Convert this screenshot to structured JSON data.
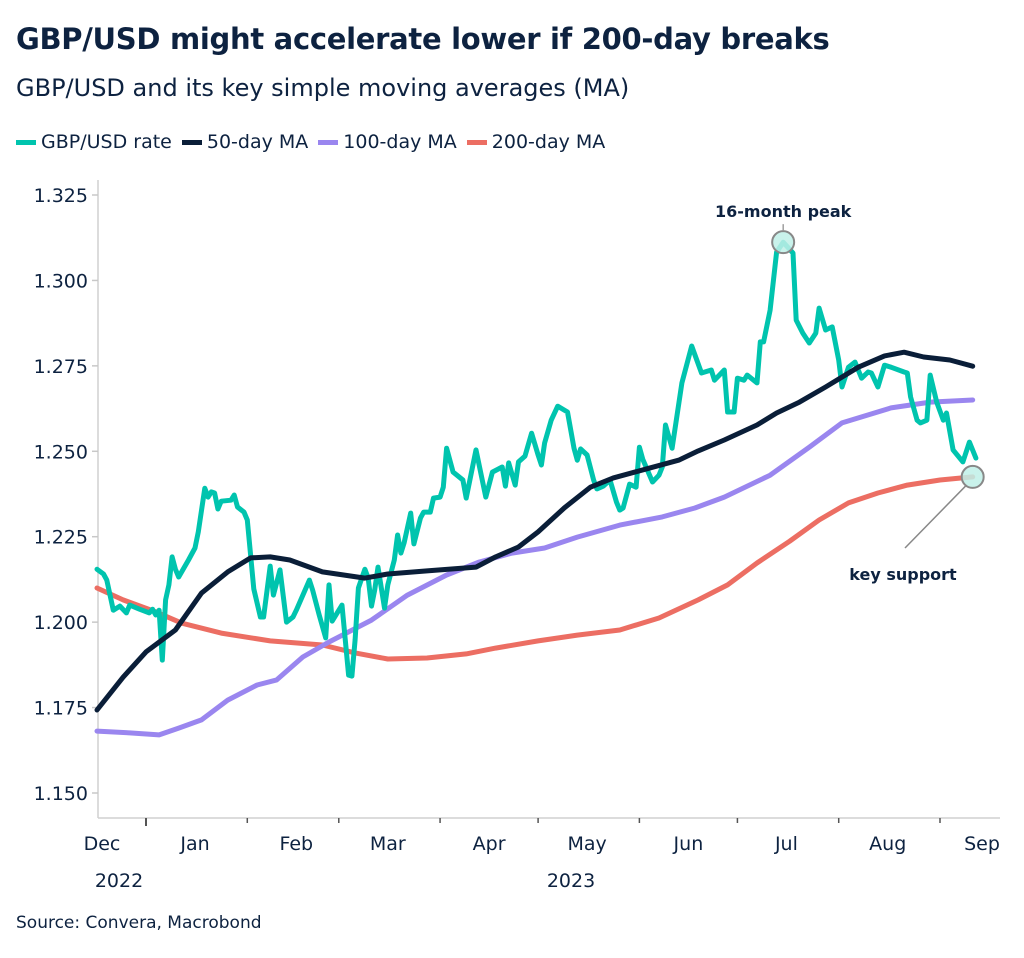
{
  "title": "GBP/USD might accelerate lower if 200-day breaks",
  "subtitle": "GBP/USD and its key simple moving averages (MA)",
  "source": "Source: Convera, Macrobond",
  "chart_data": {
    "type": "line",
    "title": "GBP/USD might accelerate lower if 200-day breaks",
    "subtitle": "GBP/USD and its key simple moving averages (MA)",
    "xlabel": "",
    "ylabel": "",
    "ylim": [
      1.15,
      1.325
    ],
    "xlim": [
      "2022-12-17",
      "2023-09-12"
    ],
    "grid": false,
    "legend_position": "top-left",
    "y_ticks": [
      "1.150",
      "1.175",
      "1.200",
      "1.225",
      "1.250",
      "1.275",
      "1.300",
      "1.325"
    ],
    "x_month_labels": [
      "Dec",
      "Jan",
      "Feb",
      "Mar",
      "Apr",
      "May",
      "Jun",
      "Jul",
      "Aug",
      "Sep"
    ],
    "x_year_labels": [
      "2022",
      "2023"
    ],
    "annotations": [
      {
        "text": "16-month peak",
        "series": "GBP/USD rate",
        "x": "2023-07-15",
        "y": 1.3112
      },
      {
        "text": "key support",
        "series": "200-day MA",
        "x": "2023-09-11",
        "y": 1.2425
      }
    ],
    "series": [
      {
        "name": "GBP/USD rate",
        "color": "#00c4ae",
        "points": [
          [
            "2022-12-17",
            1.2155
          ],
          [
            "2022-12-19",
            1.2141
          ],
          [
            "2022-12-20",
            1.2123
          ],
          [
            "2022-12-22",
            1.2035
          ],
          [
            "2022-12-24",
            1.2047
          ],
          [
            "2022-12-26",
            1.2027
          ],
          [
            "2022-12-27",
            1.205
          ],
          [
            "2022-12-30",
            1.2038
          ],
          [
            "2023-01-02",
            1.2027
          ],
          [
            "2023-01-03",
            1.2038
          ],
          [
            "2023-01-04",
            1.2021
          ],
          [
            "2023-01-05",
            1.2035
          ],
          [
            "2023-01-06",
            1.1889
          ],
          [
            "2023-01-07",
            1.2065
          ],
          [
            "2023-01-08",
            1.2109
          ],
          [
            "2023-01-09",
            1.2191
          ],
          [
            "2023-01-10",
            1.2155
          ],
          [
            "2023-01-11",
            1.2132
          ],
          [
            "2023-01-14",
            1.2182
          ],
          [
            "2023-01-16",
            1.2217
          ],
          [
            "2023-01-17",
            1.2264
          ],
          [
            "2023-01-19",
            1.2392
          ],
          [
            "2023-01-20",
            1.2366
          ],
          [
            "2023-01-21",
            1.2381
          ],
          [
            "2023-01-22",
            1.2378
          ],
          [
            "2023-01-23",
            1.2331
          ],
          [
            "2023-01-24",
            1.2354
          ],
          [
            "2023-01-27",
            1.2357
          ],
          [
            "2023-01-28",
            1.2372
          ],
          [
            "2023-01-29",
            1.2337
          ],
          [
            "2023-01-31",
            1.2322
          ],
          [
            "2023-02-01",
            1.2299
          ],
          [
            "2023-02-03",
            1.2097
          ],
          [
            "2023-02-05",
            1.2015
          ],
          [
            "2023-02-06",
            1.2015
          ],
          [
            "2023-02-08",
            1.2164
          ],
          [
            "2023-02-09",
            1.2079
          ],
          [
            "2023-02-11",
            1.2153
          ],
          [
            "2023-02-13",
            1.2
          ],
          [
            "2023-02-15",
            1.2015
          ],
          [
            "2023-02-16",
            1.2035
          ],
          [
            "2023-02-20",
            1.2123
          ],
          [
            "2023-02-21",
            1.2094
          ],
          [
            "2023-02-23",
            1.2021
          ],
          [
            "2023-02-25",
            1.1954
          ],
          [
            "2023-02-26",
            1.2109
          ],
          [
            "2023-02-27",
            1.2003
          ],
          [
            "2023-03-02",
            1.205
          ],
          [
            "2023-03-04",
            1.1845
          ],
          [
            "2023-03-05",
            1.1842
          ],
          [
            "2023-03-06",
            1.1948
          ],
          [
            "2023-03-07",
            1.21
          ],
          [
            "2023-03-09",
            1.2155
          ],
          [
            "2023-03-10",
            1.2129
          ],
          [
            "2023-03-11",
            1.2047
          ],
          [
            "2023-03-12",
            1.2094
          ],
          [
            "2023-03-13",
            1.2161
          ],
          [
            "2023-03-15",
            1.2041
          ],
          [
            "2023-03-16",
            1.2109
          ],
          [
            "2023-03-18",
            1.2182
          ],
          [
            "2023-03-19",
            1.2255
          ],
          [
            "2023-03-20",
            1.2202
          ],
          [
            "2023-03-21",
            1.2232
          ],
          [
            "2023-03-23",
            1.2319
          ],
          [
            "2023-03-24",
            1.2229
          ],
          [
            "2023-03-26",
            1.2305
          ],
          [
            "2023-03-27",
            1.2322
          ],
          [
            "2023-03-29",
            1.2322
          ],
          [
            "2023-03-30",
            1.2363
          ],
          [
            "2023-04-01",
            1.2366
          ],
          [
            "2023-04-02",
            1.2395
          ],
          [
            "2023-04-03",
            1.2509
          ],
          [
            "2023-04-05",
            1.2439
          ],
          [
            "2023-04-08",
            1.2416
          ],
          [
            "2023-04-09",
            1.2363
          ],
          [
            "2023-04-12",
            1.2504
          ],
          [
            "2023-04-15",
            1.2366
          ],
          [
            "2023-04-17",
            1.2439
          ],
          [
            "2023-04-20",
            1.2454
          ],
          [
            "2023-04-21",
            1.2398
          ],
          [
            "2023-04-22",
            1.2466
          ],
          [
            "2023-04-24",
            1.2401
          ],
          [
            "2023-04-25",
            1.2469
          ],
          [
            "2023-04-27",
            1.2486
          ],
          [
            "2023-04-29",
            1.2553
          ],
          [
            "2023-05-01",
            1.2489
          ],
          [
            "2023-05-02",
            1.246
          ],
          [
            "2023-05-03",
            1.2524
          ],
          [
            "2023-05-05",
            1.2591
          ],
          [
            "2023-05-07",
            1.2632
          ],
          [
            "2023-05-10",
            1.2615
          ],
          [
            "2023-05-12",
            1.2509
          ],
          [
            "2023-05-13",
            1.2474
          ],
          [
            "2023-05-14",
            1.2507
          ],
          [
            "2023-05-16",
            1.2489
          ],
          [
            "2023-05-18",
            1.2416
          ],
          [
            "2023-05-19",
            1.239
          ],
          [
            "2023-05-21",
            1.2398
          ],
          [
            "2023-05-23",
            1.2416
          ],
          [
            "2023-05-25",
            1.2351
          ],
          [
            "2023-05-26",
            1.2328
          ],
          [
            "2023-05-27",
            1.2334
          ],
          [
            "2023-05-29",
            1.2404
          ],
          [
            "2023-05-31",
            1.2395
          ],
          [
            "2023-06-01",
            1.2512
          ],
          [
            "2023-06-02",
            1.2477
          ],
          [
            "2023-06-05",
            1.241
          ],
          [
            "2023-06-07",
            1.243
          ],
          [
            "2023-06-08",
            1.2454
          ],
          [
            "2023-06-09",
            1.2577
          ],
          [
            "2023-06-11",
            1.2509
          ],
          [
            "2023-06-14",
            1.27
          ],
          [
            "2023-06-17",
            1.2808
          ],
          [
            "2023-06-20",
            1.2729
          ],
          [
            "2023-06-23",
            1.2738
          ],
          [
            "2023-06-24",
            1.2708
          ],
          [
            "2023-06-27",
            1.2738
          ],
          [
            "2023-06-28",
            1.2615
          ],
          [
            "2023-06-30",
            1.2615
          ],
          [
            "2023-07-01",
            1.2714
          ],
          [
            "2023-07-03",
            1.2708
          ],
          [
            "2023-07-04",
            1.2723
          ],
          [
            "2023-07-07",
            1.27
          ],
          [
            "2023-07-08",
            1.282
          ],
          [
            "2023-07-09",
            1.282
          ],
          [
            "2023-07-11",
            1.2913
          ],
          [
            "2023-07-13",
            1.3083
          ],
          [
            "2023-07-15",
            1.3112
          ],
          [
            "2023-07-18",
            1.308
          ],
          [
            "2023-07-19",
            1.2884
          ],
          [
            "2023-07-21",
            1.2846
          ],
          [
            "2023-07-23",
            1.2817
          ],
          [
            "2023-07-25",
            1.2846
          ],
          [
            "2023-07-26",
            1.2919
          ],
          [
            "2023-07-28",
            1.2855
          ],
          [
            "2023-07-30",
            1.2864
          ],
          [
            "2023-08-01",
            1.2767
          ],
          [
            "2023-08-02",
            1.2688
          ],
          [
            "2023-08-04",
            1.2746
          ],
          [
            "2023-08-06",
            1.2761
          ],
          [
            "2023-08-08",
            1.2714
          ],
          [
            "2023-08-10",
            1.2732
          ],
          [
            "2023-08-11",
            1.2729
          ],
          [
            "2023-08-13",
            1.2688
          ],
          [
            "2023-08-15",
            1.2752
          ],
          [
            "2023-08-17",
            1.2746
          ],
          [
            "2023-08-21",
            1.2732
          ],
          [
            "2023-08-22",
            1.2729
          ],
          [
            "2023-08-23",
            1.2659
          ],
          [
            "2023-08-25",
            1.2591
          ],
          [
            "2023-08-26",
            1.2583
          ],
          [
            "2023-08-28",
            1.2591
          ],
          [
            "2023-08-29",
            1.2723
          ],
          [
            "2023-08-31",
            1.2644
          ],
          [
            "2023-09-02",
            1.2591
          ],
          [
            "2023-09-03",
            1.2612
          ],
          [
            "2023-09-05",
            1.2504
          ],
          [
            "2023-09-08",
            1.2469
          ],
          [
            "2023-09-10",
            1.2527
          ],
          [
            "2023-09-12",
            1.248
          ]
        ]
      },
      {
        "name": "50-day MA",
        "color": "#0a1e38",
        "points": [
          [
            "2022-12-17",
            1.1743
          ],
          [
            "2022-12-25",
            1.1839
          ],
          [
            "2023-01-01",
            1.1913
          ],
          [
            "2023-01-10",
            1.1977
          ],
          [
            "2023-01-18",
            1.2085
          ],
          [
            "2023-01-26",
            1.2147
          ],
          [
            "2023-02-02",
            1.2188
          ],
          [
            "2023-02-08",
            1.2191
          ],
          [
            "2023-02-14",
            1.2182
          ],
          [
            "2023-02-24",
            1.2147
          ],
          [
            "2023-03-09",
            1.2129
          ],
          [
            "2023-03-16",
            1.2141
          ],
          [
            "2023-03-28",
            1.215
          ],
          [
            "2023-04-12",
            1.2161
          ],
          [
            "2023-04-18",
            1.2191
          ],
          [
            "2023-04-25",
            1.222
          ],
          [
            "2023-05-01",
            1.2264
          ],
          [
            "2023-05-09",
            1.2334
          ],
          [
            "2023-05-17",
            1.2395
          ],
          [
            "2023-05-24",
            1.2422
          ],
          [
            "2023-06-03",
            1.2448
          ],
          [
            "2023-06-13",
            1.2474
          ],
          [
            "2023-06-19",
            1.2501
          ],
          [
            "2023-06-27",
            1.2533
          ],
          [
            "2023-07-07",
            1.2577
          ],
          [
            "2023-07-13",
            1.2612
          ],
          [
            "2023-07-20",
            1.2644
          ],
          [
            "2023-07-28",
            1.2688
          ],
          [
            "2023-08-07",
            1.2746
          ],
          [
            "2023-08-15",
            1.2779
          ],
          [
            "2023-08-21",
            1.279
          ],
          [
            "2023-08-27",
            1.2776
          ],
          [
            "2023-09-04",
            1.2767
          ],
          [
            "2023-09-11",
            1.2749
          ]
        ]
      },
      {
        "name": "100-day MA",
        "color": "#9a86ef",
        "points": [
          [
            "2022-12-17",
            1.1681
          ],
          [
            "2022-12-27",
            1.1676
          ],
          [
            "2023-01-05",
            1.167
          ],
          [
            "2023-01-11",
            1.169
          ],
          [
            "2023-01-18",
            1.1714
          ],
          [
            "2023-01-26",
            1.1772
          ],
          [
            "2023-02-04",
            1.1816
          ],
          [
            "2023-02-10",
            1.1831
          ],
          [
            "2023-02-18",
            1.1898
          ],
          [
            "2023-02-26",
            1.1942
          ],
          [
            "2023-03-11",
            1.2006
          ],
          [
            "2023-03-22",
            1.2079
          ],
          [
            "2023-04-03",
            1.2138
          ],
          [
            "2023-04-13",
            1.2176
          ],
          [
            "2023-04-23",
            1.2202
          ],
          [
            "2023-05-03",
            1.2217
          ],
          [
            "2023-05-13",
            1.2249
          ],
          [
            "2023-05-26",
            1.2284
          ],
          [
            "2023-06-08",
            1.2308
          ],
          [
            "2023-06-18",
            1.2334
          ],
          [
            "2023-06-27",
            1.2366
          ],
          [
            "2023-07-11",
            1.243
          ],
          [
            "2023-07-23",
            1.2512
          ],
          [
            "2023-08-02",
            1.2583
          ],
          [
            "2023-08-17",
            1.2627
          ],
          [
            "2023-08-29",
            1.2644
          ],
          [
            "2023-09-11",
            1.265
          ]
        ]
      },
      {
        "name": "200-day MA",
        "color": "#ec6e63",
        "points": [
          [
            "2022-12-17",
            1.21
          ],
          [
            "2022-12-25",
            1.2065
          ],
          [
            "2023-01-04",
            1.203
          ],
          [
            "2023-01-12",
            1.1997
          ],
          [
            "2023-01-24",
            1.1968
          ],
          [
            "2023-02-08",
            1.1945
          ],
          [
            "2023-02-24",
            1.1933
          ],
          [
            "2023-03-06",
            1.191
          ],
          [
            "2023-03-16",
            1.1892
          ],
          [
            "2023-03-28",
            1.1895
          ],
          [
            "2023-04-09",
            1.1907
          ],
          [
            "2023-04-18",
            1.1924
          ],
          [
            "2023-05-01",
            1.1945
          ],
          [
            "2023-05-13",
            1.1962
          ],
          [
            "2023-05-26",
            1.1977
          ],
          [
            "2023-06-07",
            1.2012
          ],
          [
            "2023-06-19",
            1.2065
          ],
          [
            "2023-06-28",
            1.2109
          ],
          [
            "2023-07-07",
            1.2173
          ],
          [
            "2023-07-17",
            1.2237
          ],
          [
            "2023-07-26",
            1.2299
          ],
          [
            "2023-08-04",
            1.2349
          ],
          [
            "2023-08-13",
            1.2378
          ],
          [
            "2023-08-22",
            1.2401
          ],
          [
            "2023-09-01",
            1.2416
          ],
          [
            "2023-09-11",
            1.2425
          ]
        ]
      }
    ]
  }
}
